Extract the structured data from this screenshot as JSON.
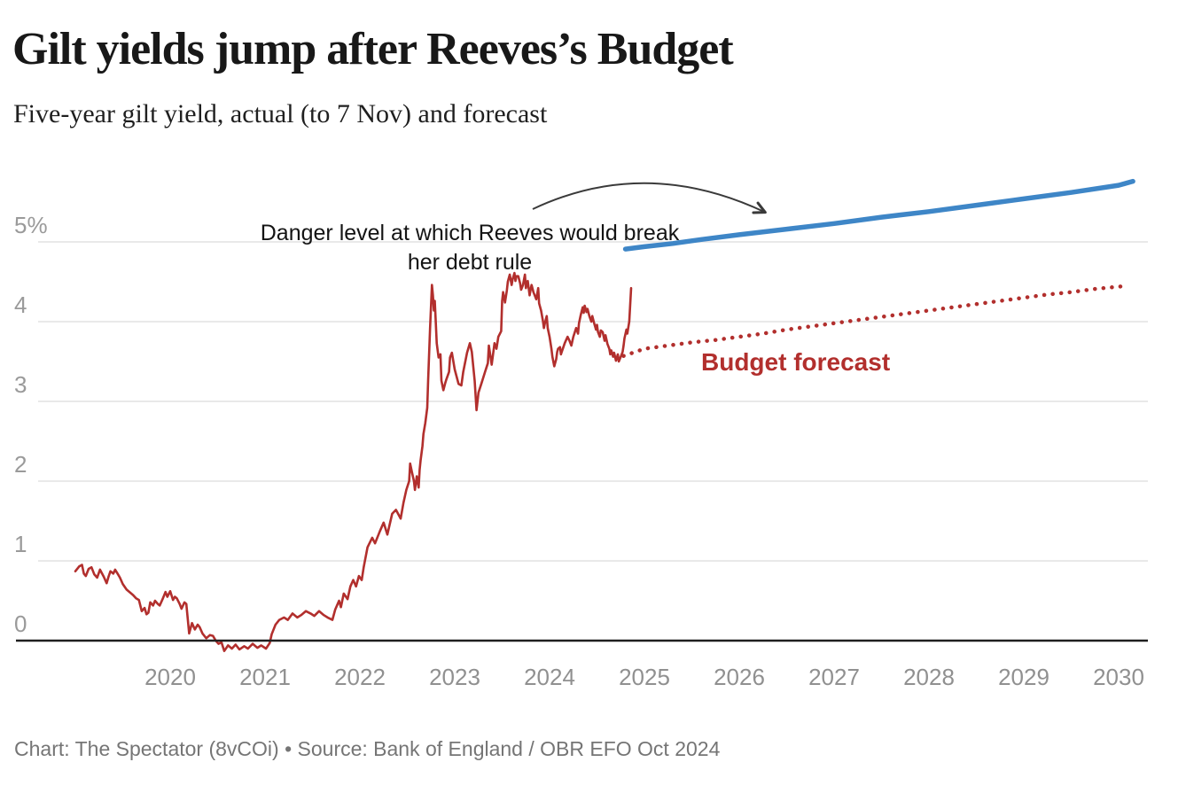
{
  "chart_data": {
    "type": "line",
    "title": "Gilt yields jump after Reeves’s Budget",
    "subtitle": "Five-year gilt yield, actual (to 7 Nov) and forecast",
    "source_note": "Chart: The Spectator (8vCOi) • Source: Bank of England / OBR EFO Oct 2024",
    "xlabel": "",
    "ylabel": "Five-year gilt yield (%)",
    "xlim": [
      2018.95,
      2030.35
    ],
    "ylim": [
      -0.25,
      5.9
    ],
    "grid": "horizontal",
    "legend": "none (direct line labels)",
    "y_ticks": [
      {
        "value": 5,
        "label": "5%"
      },
      {
        "value": 4,
        "label": "4"
      },
      {
        "value": 3,
        "label": "3"
      },
      {
        "value": 2,
        "label": "2"
      },
      {
        "value": 1,
        "label": "1"
      },
      {
        "value": 0,
        "label": "0"
      }
    ],
    "x_ticks": [
      {
        "value": 2020,
        "label": "2020"
      },
      {
        "value": 2021,
        "label": "2021"
      },
      {
        "value": 2022,
        "label": "2022"
      },
      {
        "value": 2023,
        "label": "2023"
      },
      {
        "value": 2024,
        "label": "2024"
      },
      {
        "value": 2025,
        "label": "2025"
      },
      {
        "value": 2026,
        "label": "2026"
      },
      {
        "value": 2027,
        "label": "2027"
      },
      {
        "value": 2028,
        "label": "2028"
      },
      {
        "value": 2029,
        "label": "2029"
      },
      {
        "value": 2030,
        "label": "2030"
      }
    ],
    "annotations": {
      "danger_line1": "Danger level at which Reeves would break",
      "danger_line2": "her debt rule",
      "forecast_label": "Budget forecast"
    },
    "colors": {
      "actual": "#b22f2d",
      "forecast": "#b22f2d",
      "danger": "#3e86c7",
      "grid": "#e9e9e9",
      "zero_line": "#1f1f1f",
      "arrow": "#3a3a3a"
    },
    "series": [
      {
        "name": "Five-year gilt yield (actual, to 7 Nov)",
        "role": "actual",
        "style": "solid",
        "color": "#b22f2d",
        "points": [
          [
            2019.0,
            0.87
          ],
          [
            2019.04,
            0.93
          ],
          [
            2019.07,
            0.95
          ],
          [
            2019.09,
            0.84
          ],
          [
            2019.11,
            0.81
          ],
          [
            2019.14,
            0.9
          ],
          [
            2019.17,
            0.92
          ],
          [
            2019.2,
            0.83
          ],
          [
            2019.23,
            0.79
          ],
          [
            2019.26,
            0.89
          ],
          [
            2019.3,
            0.8
          ],
          [
            2019.33,
            0.72
          ],
          [
            2019.35,
            0.8
          ],
          [
            2019.37,
            0.87
          ],
          [
            2019.4,
            0.84
          ],
          [
            2019.42,
            0.89
          ],
          [
            2019.45,
            0.83
          ],
          [
            2019.47,
            0.79
          ],
          [
            2019.5,
            0.71
          ],
          [
            2019.54,
            0.64
          ],
          [
            2019.58,
            0.6
          ],
          [
            2019.61,
            0.57
          ],
          [
            2019.64,
            0.53
          ],
          [
            2019.67,
            0.51
          ],
          [
            2019.7,
            0.37
          ],
          [
            2019.73,
            0.41
          ],
          [
            2019.75,
            0.33
          ],
          [
            2019.77,
            0.35
          ],
          [
            2019.79,
            0.48
          ],
          [
            2019.82,
            0.44
          ],
          [
            2019.84,
            0.5
          ],
          [
            2019.87,
            0.46
          ],
          [
            2019.89,
            0.44
          ],
          [
            2019.92,
            0.52
          ],
          [
            2019.95,
            0.61
          ],
          [
            2019.97,
            0.55
          ],
          [
            2020.0,
            0.62
          ],
          [
            2020.03,
            0.51
          ],
          [
            2020.05,
            0.55
          ],
          [
            2020.07,
            0.53
          ],
          [
            2020.1,
            0.46
          ],
          [
            2020.12,
            0.4
          ],
          [
            2020.15,
            0.48
          ],
          [
            2020.17,
            0.46
          ],
          [
            2020.2,
            0.09
          ],
          [
            2020.23,
            0.22
          ],
          [
            2020.26,
            0.14
          ],
          [
            2020.29,
            0.2
          ],
          [
            2020.31,
            0.17
          ],
          [
            2020.34,
            0.09
          ],
          [
            2020.38,
            0.03
          ],
          [
            2020.42,
            0.07
          ],
          [
            2020.45,
            0.06
          ],
          [
            2020.48,
            0.0
          ],
          [
            2020.51,
            -0.04
          ],
          [
            2020.54,
            -0.02
          ],
          [
            2020.57,
            -0.13
          ],
          [
            2020.61,
            -0.06
          ],
          [
            2020.65,
            -0.1
          ],
          [
            2020.69,
            -0.05
          ],
          [
            2020.73,
            -0.11
          ],
          [
            2020.78,
            -0.07
          ],
          [
            2020.82,
            -0.1
          ],
          [
            2020.87,
            -0.04
          ],
          [
            2020.92,
            -0.09
          ],
          [
            2020.96,
            -0.06
          ],
          [
            2021.01,
            -0.1
          ],
          [
            2021.05,
            -0.03
          ],
          [
            2021.07,
            0.08
          ],
          [
            2021.11,
            0.2
          ],
          [
            2021.15,
            0.26
          ],
          [
            2021.2,
            0.29
          ],
          [
            2021.24,
            0.26
          ],
          [
            2021.29,
            0.34
          ],
          [
            2021.34,
            0.29
          ],
          [
            2021.38,
            0.32
          ],
          [
            2021.43,
            0.37
          ],
          [
            2021.48,
            0.34
          ],
          [
            2021.52,
            0.31
          ],
          [
            2021.57,
            0.37
          ],
          [
            2021.62,
            0.32
          ],
          [
            2021.66,
            0.29
          ],
          [
            2021.71,
            0.26
          ],
          [
            2021.74,
            0.39
          ],
          [
            2021.78,
            0.5
          ],
          [
            2021.8,
            0.42
          ],
          [
            2021.83,
            0.59
          ],
          [
            2021.87,
            0.52
          ],
          [
            2021.9,
            0.68
          ],
          [
            2021.93,
            0.76
          ],
          [
            2021.96,
            0.68
          ],
          [
            2021.99,
            0.81
          ],
          [
            2022.02,
            0.76
          ],
          [
            2022.04,
            0.92
          ],
          [
            2022.08,
            1.17
          ],
          [
            2022.13,
            1.29
          ],
          [
            2022.16,
            1.22
          ],
          [
            2022.21,
            1.37
          ],
          [
            2022.25,
            1.48
          ],
          [
            2022.29,
            1.33
          ],
          [
            2022.34,
            1.59
          ],
          [
            2022.38,
            1.64
          ],
          [
            2022.43,
            1.53
          ],
          [
            2022.46,
            1.73
          ],
          [
            2022.49,
            1.89
          ],
          [
            2022.52,
            2.0
          ],
          [
            2022.53,
            2.22
          ],
          [
            2022.55,
            2.11
          ],
          [
            2022.57,
            2.0
          ],
          [
            2022.58,
            1.89
          ],
          [
            2022.6,
            2.06
          ],
          [
            2022.62,
            1.92
          ],
          [
            2022.63,
            2.14
          ],
          [
            2022.64,
            2.26
          ],
          [
            2022.66,
            2.44
          ],
          [
            2022.67,
            2.59
          ],
          [
            2022.69,
            2.73
          ],
          [
            2022.71,
            2.92
          ],
          [
            2022.72,
            3.26
          ],
          [
            2022.74,
            3.92
          ],
          [
            2022.76,
            4.46
          ],
          [
            2022.77,
            4.33
          ],
          [
            2022.78,
            4.14
          ],
          [
            2022.79,
            4.26
          ],
          [
            2022.8,
            4.0
          ],
          [
            2022.81,
            3.73
          ],
          [
            2022.83,
            3.55
          ],
          [
            2022.85,
            3.59
          ],
          [
            2022.86,
            3.26
          ],
          [
            2022.88,
            3.14
          ],
          [
            2022.9,
            3.23
          ],
          [
            2022.91,
            3.27
          ],
          [
            2022.94,
            3.37
          ],
          [
            2022.95,
            3.55
          ],
          [
            2022.97,
            3.61
          ],
          [
            2023.0,
            3.4
          ],
          [
            2023.04,
            3.22
          ],
          [
            2023.07,
            3.2
          ],
          [
            2023.09,
            3.37
          ],
          [
            2023.13,
            3.61
          ],
          [
            2023.16,
            3.73
          ],
          [
            2023.18,
            3.62
          ],
          [
            2023.21,
            3.26
          ],
          [
            2023.23,
            2.89
          ],
          [
            2023.25,
            3.11
          ],
          [
            2023.28,
            3.22
          ],
          [
            2023.32,
            3.37
          ],
          [
            2023.35,
            3.48
          ],
          [
            2023.36,
            3.7
          ],
          [
            2023.39,
            3.46
          ],
          [
            2023.42,
            3.73
          ],
          [
            2023.44,
            3.66
          ],
          [
            2023.46,
            3.81
          ],
          [
            2023.49,
            3.88
          ],
          [
            2023.5,
            4.26
          ],
          [
            2023.51,
            4.37
          ],
          [
            2023.53,
            4.24
          ],
          [
            2023.55,
            4.39
          ],
          [
            2023.56,
            4.5
          ],
          [
            2023.58,
            4.59
          ],
          [
            2023.6,
            4.46
          ],
          [
            2023.61,
            4.53
          ],
          [
            2023.63,
            4.61
          ],
          [
            2023.64,
            4.51
          ],
          [
            2023.65,
            4.57
          ],
          [
            2023.67,
            4.57
          ],
          [
            2023.69,
            4.48
          ],
          [
            2023.7,
            4.4
          ],
          [
            2023.72,
            4.46
          ],
          [
            2023.74,
            4.59
          ],
          [
            2023.75,
            4.42
          ],
          [
            2023.77,
            4.51
          ],
          [
            2023.79,
            4.33
          ],
          [
            2023.8,
            4.4
          ],
          [
            2023.81,
            4.46
          ],
          [
            2023.83,
            4.37
          ],
          [
            2023.86,
            4.28
          ],
          [
            2023.88,
            4.42
          ],
          [
            2023.89,
            4.23
          ],
          [
            2023.91,
            4.14
          ],
          [
            2023.93,
            4.01
          ],
          [
            2023.94,
            3.92
          ],
          [
            2023.95,
            3.98
          ],
          [
            2023.97,
            4.07
          ],
          [
            2023.98,
            3.92
          ],
          [
            2024.0,
            3.81
          ],
          [
            2024.02,
            3.66
          ],
          [
            2024.03,
            3.56
          ],
          [
            2024.05,
            3.44
          ],
          [
            2024.07,
            3.53
          ],
          [
            2024.08,
            3.62
          ],
          [
            2024.09,
            3.66
          ],
          [
            2024.11,
            3.68
          ],
          [
            2024.12,
            3.59
          ],
          [
            2024.16,
            3.73
          ],
          [
            2024.19,
            3.81
          ],
          [
            2024.21,
            3.76
          ],
          [
            2024.23,
            3.7
          ],
          [
            2024.25,
            3.81
          ],
          [
            2024.28,
            3.92
          ],
          [
            2024.3,
            3.85
          ],
          [
            2024.31,
            3.98
          ],
          [
            2024.33,
            4.09
          ],
          [
            2024.35,
            4.18
          ],
          [
            2024.36,
            4.11
          ],
          [
            2024.37,
            4.2
          ],
          [
            2024.39,
            4.12
          ],
          [
            2024.4,
            4.16
          ],
          [
            2024.42,
            4.07
          ],
          [
            2024.44,
            4.0
          ],
          [
            2024.45,
            4.07
          ],
          [
            2024.47,
            3.98
          ],
          [
            2024.49,
            3.9
          ],
          [
            2024.5,
            3.96
          ],
          [
            2024.51,
            3.87
          ],
          [
            2024.53,
            3.81
          ],
          [
            2024.54,
            3.89
          ],
          [
            2024.56,
            3.87
          ],
          [
            2024.58,
            3.76
          ],
          [
            2024.59,
            3.83
          ],
          [
            2024.61,
            3.72
          ],
          [
            2024.63,
            3.66
          ],
          [
            2024.64,
            3.59
          ],
          [
            2024.65,
            3.64
          ],
          [
            2024.67,
            3.56
          ],
          [
            2024.68,
            3.61
          ],
          [
            2024.7,
            3.51
          ],
          [
            2024.72,
            3.59
          ],
          [
            2024.73,
            3.5
          ],
          [
            2024.75,
            3.56
          ],
          [
            2024.77,
            3.62
          ],
          [
            2024.78,
            3.7
          ],
          [
            2024.79,
            3.79
          ],
          [
            2024.81,
            3.9
          ],
          [
            2024.82,
            3.85
          ],
          [
            2024.84,
            4.0
          ],
          [
            2024.85,
            4.2
          ],
          [
            2024.86,
            4.42
          ]
        ]
      },
      {
        "name": "Budget forecast",
        "role": "forecast",
        "style": "dotted",
        "color": "#b22f2d",
        "points": [
          [
            2024.78,
            3.57
          ],
          [
            2025.0,
            3.66
          ],
          [
            2025.25,
            3.7
          ],
          [
            2025.5,
            3.74
          ],
          [
            2025.75,
            3.77
          ],
          [
            2026.0,
            3.81
          ],
          [
            2026.25,
            3.85
          ],
          [
            2026.5,
            3.9
          ],
          [
            2026.75,
            3.94
          ],
          [
            2027.0,
            3.98
          ],
          [
            2027.25,
            4.02
          ],
          [
            2027.5,
            4.06
          ],
          [
            2027.75,
            4.1
          ],
          [
            2028.0,
            4.14
          ],
          [
            2028.25,
            4.18
          ],
          [
            2028.5,
            4.22
          ],
          [
            2028.75,
            4.26
          ],
          [
            2029.0,
            4.3
          ],
          [
            2029.25,
            4.34
          ],
          [
            2029.5,
            4.37
          ],
          [
            2029.75,
            4.41
          ],
          [
            2030.1,
            4.45
          ]
        ]
      },
      {
        "name": "Danger level at which Reeves would break her debt rule",
        "role": "danger",
        "style": "solid",
        "color": "#3e86c7",
        "points": [
          [
            2024.8,
            4.91
          ],
          [
            2025.0,
            4.94
          ],
          [
            2025.3,
            4.98
          ],
          [
            2025.6,
            5.03
          ],
          [
            2026.0,
            5.09
          ],
          [
            2026.5,
            5.16
          ],
          [
            2027.0,
            5.23
          ],
          [
            2027.5,
            5.31
          ],
          [
            2028.0,
            5.38
          ],
          [
            2028.5,
            5.46
          ],
          [
            2029.0,
            5.54
          ],
          [
            2029.5,
            5.62
          ],
          [
            2030.0,
            5.71
          ],
          [
            2030.15,
            5.76
          ]
        ]
      }
    ]
  }
}
